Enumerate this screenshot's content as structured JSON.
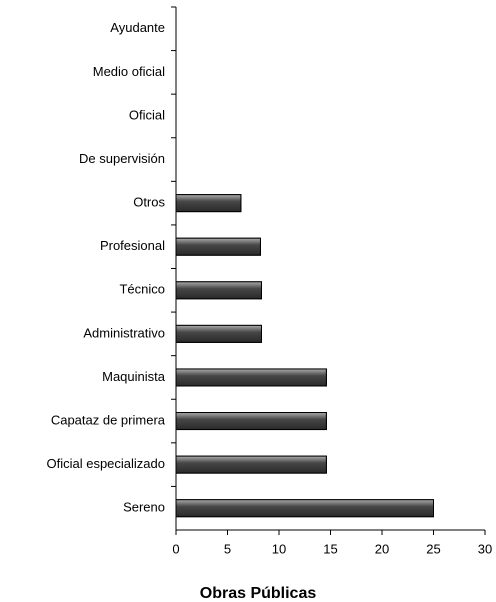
{
  "chart_data": {
    "type": "barh",
    "title": "Obras Públicas",
    "categories": [
      "Ayudante",
      "Medio oficial",
      "Oficial",
      "De supervisión",
      "Otros",
      "Profesional",
      "Técnico",
      "Administrativo",
      "Maquinista",
      "Capataz de primera",
      "Oficial especializado",
      "Sereno"
    ],
    "values": [
      0,
      0,
      0,
      0,
      6.3,
      8.2,
      8.3,
      8.3,
      14.6,
      14.6,
      14.6,
      25
    ],
    "color": "#555555",
    "xlim": [
      0,
      30
    ],
    "xticks": [
      0,
      5,
      10,
      15,
      20,
      25,
      30
    ],
    "grid": false
  }
}
